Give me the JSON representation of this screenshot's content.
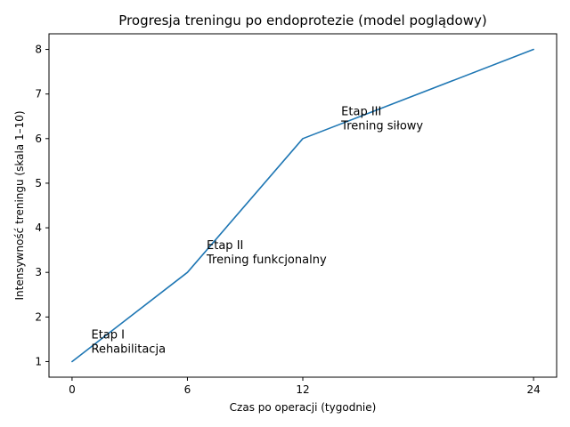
{
  "chart_data": {
    "type": "line",
    "title": "Progresja treningu po endoprotezie (model poglądowy)",
    "xlabel": "Czas po operacji (tygodnie)",
    "ylabel": "Intensywność treningu (skala 1–10)",
    "x": [
      0,
      6,
      12,
      24
    ],
    "series": [
      {
        "values": [
          1,
          3,
          6,
          8
        ]
      }
    ],
    "xticks": [
      0,
      6,
      12,
      24
    ],
    "xtick_labels": [
      "0",
      "6",
      "12",
      "24"
    ],
    "yticks": [
      1,
      2,
      3,
      4,
      5,
      6,
      7,
      8
    ],
    "ytick_labels": [
      "1",
      "2",
      "3",
      "4",
      "5",
      "6",
      "7",
      "8"
    ],
    "xlim": [
      -1.2,
      25.2
    ],
    "ylim": [
      0.65,
      8.35
    ],
    "grid": false,
    "legend": "none",
    "line_color": "#1f77b4",
    "annotations": [
      {
        "x": 1,
        "y": 1.5,
        "lines": [
          "Etap I",
          "Rehabilitacja"
        ]
      },
      {
        "x": 7,
        "y": 3.5,
        "lines": [
          "Etap II",
          "Trening funkcjonalny"
        ]
      },
      {
        "x": 14,
        "y": 6.5,
        "lines": [
          "Etap III",
          "Trening siłowy"
        ]
      }
    ]
  }
}
